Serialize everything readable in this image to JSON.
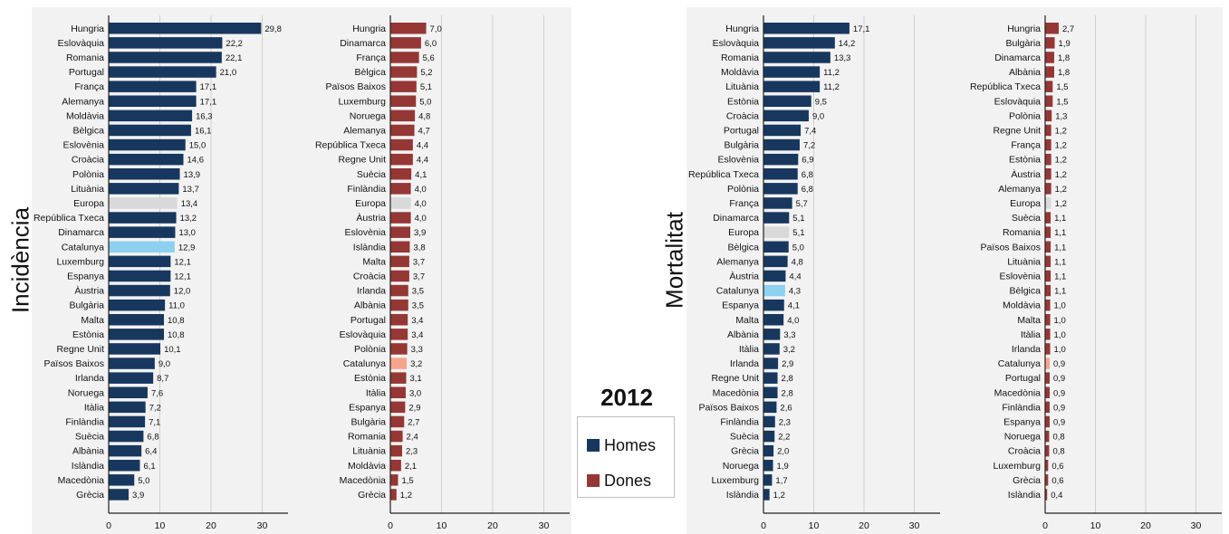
{
  "page": {
    "year": "2012",
    "label_left": "Incidència",
    "label_right": "Mortalitat",
    "legend": [
      {
        "label": "Homes",
        "color": "#17375e"
      },
      {
        "label": "Dones",
        "color": "#953735"
      }
    ]
  },
  "colors": {
    "homes": "#17375e",
    "dones": "#953735",
    "europa": "#d9d9d9",
    "catalunya_homes": "#8dd0f0",
    "catalunya_dones": "#f6a58c"
  },
  "chart_data": [
    {
      "type": "bar",
      "orientation": "horizontal",
      "series_name": "Homes",
      "group": "Incidència",
      "xlim": [
        0,
        35
      ],
      "xticks": [
        0,
        10,
        20,
        30
      ],
      "categories": [
        "Hungria",
        "Eslovàquia",
        "Romania",
        "Portugal",
        "França",
        "Alemanya",
        "Moldàvia",
        "Bèlgica",
        "Eslovènia",
        "Croàcia",
        "Polònia",
        "Lituània",
        "Europa",
        "República Txeca",
        "Dinamarca",
        "Catalunya",
        "Luxemburg",
        "Espanya",
        "Àustria",
        "Bulgària",
        "Malta",
        "Estònia",
        "Regne Unit",
        "Països Baixos",
        "Irlanda",
        "Noruega",
        "Itàlia",
        "Finlàndia",
        "Suècia",
        "Albània",
        "Islàndia",
        "Macedònia",
        "Grècia"
      ],
      "values": [
        29.8,
        22.2,
        22.1,
        21.0,
        17.1,
        17.1,
        16.3,
        16.1,
        15.0,
        14.6,
        13.9,
        13.7,
        13.4,
        13.2,
        13.0,
        12.9,
        12.1,
        12.1,
        12.0,
        11.0,
        10.8,
        10.8,
        10.1,
        9.0,
        8.7,
        7.6,
        7.2,
        7.1,
        6.8,
        6.4,
        6.1,
        5.0,
        3.9
      ],
      "labels": [
        "29,8",
        "22,2",
        "22,1",
        "21,0",
        "17,1",
        "17,1",
        "16,3",
        "16,1",
        "15,0",
        "14,6",
        "13,9",
        "13,7",
        "13,4",
        "13,2",
        "13,0",
        "12,9",
        "12,1",
        "12,1",
        "12,0",
        "11,0",
        "10,8",
        "10,8",
        "10,1",
        "9,0",
        "8,7",
        "7,6",
        "7,2",
        "7,1",
        "6,8",
        "6,4",
        "6,1",
        "5,0",
        "3,9"
      ]
    },
    {
      "type": "bar",
      "orientation": "horizontal",
      "series_name": "Dones",
      "group": "Incidència",
      "xlim": [
        0,
        35
      ],
      "xticks": [
        0,
        10,
        20,
        30
      ],
      "categories": [
        "Hungria",
        "Dinamarca",
        "França",
        "Bèlgica",
        "Països Baixos",
        "Luxemburg",
        "Noruega",
        "Alemanya",
        "República Txeca",
        "Regne Unit",
        "Suècia",
        "Finlàndia",
        "Europa",
        "Àustria",
        "Eslovènia",
        "Islàndia",
        "Malta",
        "Croàcia",
        "Irlanda",
        "Albània",
        "Portugal",
        "Eslovàquia",
        "Polònia",
        "Catalunya",
        "Estònia",
        "Itàlia",
        "Espanya",
        "Bulgària",
        "Romania",
        "Lituània",
        "Moldàvia",
        "Macedònia",
        "Grècia"
      ],
      "values": [
        7.0,
        6.0,
        5.6,
        5.2,
        5.1,
        5.0,
        4.8,
        4.7,
        4.4,
        4.4,
        4.1,
        4.0,
        4.0,
        4.0,
        3.9,
        3.8,
        3.7,
        3.7,
        3.5,
        3.5,
        3.4,
        3.4,
        3.3,
        3.2,
        3.1,
        3.0,
        2.9,
        2.7,
        2.4,
        2.3,
        2.1,
        1.5,
        1.2
      ],
      "labels": [
        "7,0",
        "6,0",
        "5,6",
        "5,2",
        "5,1",
        "5,0",
        "4,8",
        "4,7",
        "4,4",
        "4,4",
        "4,1",
        "4,0",
        "4,0",
        "4,0",
        "3,9",
        "3,8",
        "3,7",
        "3,7",
        "3,5",
        "3,5",
        "3,4",
        "3,4",
        "3,3",
        "3,2",
        "3,1",
        "3,0",
        "2,9",
        "2,7",
        "2,4",
        "2,3",
        "2,1",
        "1,5",
        "1,2"
      ]
    },
    {
      "type": "bar",
      "orientation": "horizontal",
      "series_name": "Homes",
      "group": "Mortalitat",
      "xlim": [
        0,
        35
      ],
      "xticks": [
        0,
        10,
        20,
        30
      ],
      "categories": [
        "Hungria",
        "Eslovàquia",
        "Romania",
        "Moldàvia",
        "Lituània",
        "Estònia",
        "Croàcia",
        "Portugal",
        "Bulgària",
        "Eslovènia",
        "República Txeca",
        "Polònia",
        "França",
        "Dinamarca",
        "Europa",
        "Bèlgica",
        "Alemanya",
        "Àustria",
        "Catalunya",
        "Espanya",
        "Malta",
        "Albània",
        "Itàlia",
        "Irlanda",
        "Regne Unit",
        "Macedònia",
        "Països Baixos",
        "Finlàndia",
        "Suècia",
        "Grècia",
        "Noruega",
        "Luxemburg",
        "Islàndia"
      ],
      "values": [
        17.1,
        14.2,
        13.3,
        11.2,
        11.2,
        9.5,
        9.0,
        7.4,
        7.2,
        6.9,
        6.8,
        6.8,
        5.7,
        5.1,
        5.1,
        5.0,
        4.8,
        4.4,
        4.3,
        4.1,
        4.0,
        3.3,
        3.2,
        2.9,
        2.8,
        2.8,
        2.6,
        2.3,
        2.2,
        2.0,
        1.9,
        1.7,
        1.2
      ],
      "labels": [
        "17,1",
        "14,2",
        "13,3",
        "11,2",
        "11,2",
        "9,5",
        "9,0",
        "7,4",
        "7,2",
        "6,9",
        "6,8",
        "6,8",
        "5,7",
        "5,1",
        "5,1",
        "5,0",
        "4,8",
        "4,4",
        "4,3",
        "4,1",
        "4,0",
        "3,3",
        "3,2",
        "2,9",
        "2,8",
        "2,8",
        "2,6",
        "2,3",
        "2,2",
        "2,0",
        "1,9",
        "1,7",
        "1,2"
      ]
    },
    {
      "type": "bar",
      "orientation": "horizontal",
      "series_name": "Dones",
      "group": "Mortalitat",
      "xlim": [
        0,
        35
      ],
      "xticks": [
        0,
        10,
        20,
        30
      ],
      "categories": [
        "Hungria",
        "Bulgària",
        "Dinamarca",
        "Albània",
        "República Txeca",
        "Eslovàquia",
        "Polònia",
        "Regne Unit",
        "França",
        "Estònia",
        "Àustria",
        "Alemanya",
        "Europa",
        "Suècia",
        "Romania",
        "Països Baixos",
        "Lituània",
        "Eslovènia",
        "Bèlgica",
        "Moldàvia",
        "Malta",
        "Itàlia",
        "Irlanda",
        "Catalunya",
        "Portugal",
        "Macedònia",
        "Finlàndia",
        "Espanya",
        "Noruega",
        "Croàcia",
        "Luxemburg",
        "Grècia",
        "Islàndia"
      ],
      "values": [
        2.7,
        1.9,
        1.8,
        1.8,
        1.5,
        1.5,
        1.3,
        1.2,
        1.2,
        1.2,
        1.2,
        1.2,
        1.2,
        1.1,
        1.1,
        1.1,
        1.1,
        1.1,
        1.1,
        1.0,
        1.0,
        1.0,
        1.0,
        0.9,
        0.9,
        0.9,
        0.9,
        0.9,
        0.8,
        0.8,
        0.6,
        0.6,
        0.4
      ],
      "labels": [
        "2,7",
        "1,9",
        "1,8",
        "1,8",
        "1,5",
        "1,5",
        "1,3",
        "1,2",
        "1,2",
        "1,2",
        "1,2",
        "1,2",
        "1,2",
        "1,1",
        "1,1",
        "1,1",
        "1,1",
        "1,1",
        "1,1",
        "1,0",
        "1,0",
        "1,0",
        "1,0",
        "0,9",
        "0,9",
        "0,9",
        "0,9",
        "0,9",
        "0,8",
        "0,8",
        "0,6",
        "0,6",
        "0,4"
      ]
    }
  ]
}
